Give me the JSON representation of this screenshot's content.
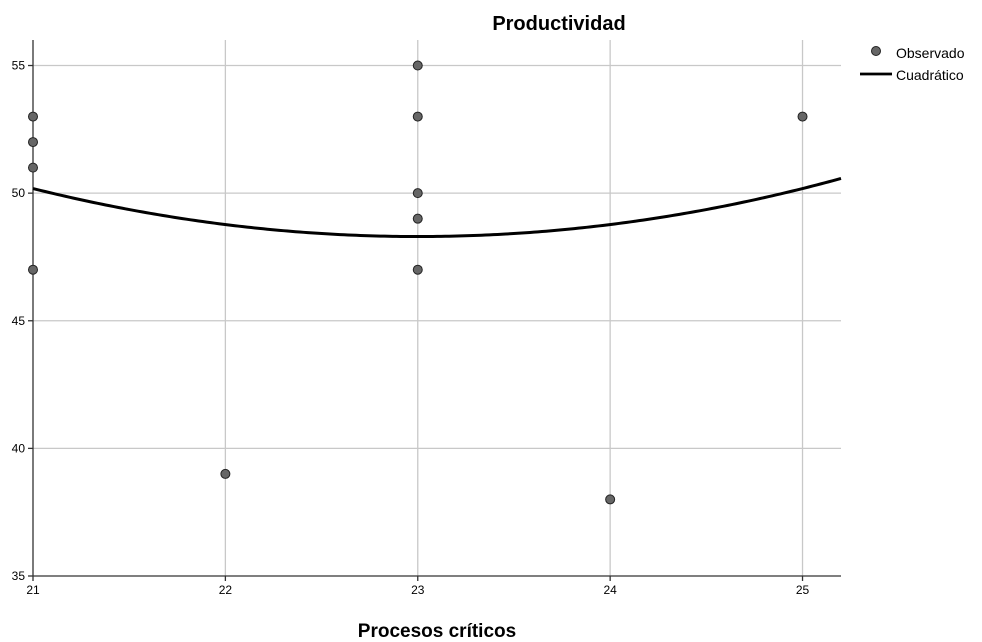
{
  "chart_data": {
    "type": "scatter",
    "title": "Productividad",
    "xlabel": "Procesos críticos",
    "ylabel": "",
    "xlim": [
      21,
      25.2
    ],
    "ylim": [
      35,
      56
    ],
    "x_ticks": [
      21,
      22,
      23,
      24,
      25
    ],
    "x_tick_labels": [
      "21",
      "22",
      "23",
      "24",
      "25"
    ],
    "y_ticks": [
      35,
      40,
      45,
      50,
      55
    ],
    "y_tick_labels": [
      "35",
      "40",
      "45",
      "50",
      "55"
    ],
    "grid": true,
    "legend_position": "top-right",
    "series": [
      {
        "name": "Observado",
        "kind": "points",
        "color": "#666666",
        "points": [
          {
            "x": 21,
            "y": 53
          },
          {
            "x": 21,
            "y": 52
          },
          {
            "x": 21,
            "y": 51
          },
          {
            "x": 21,
            "y": 47
          },
          {
            "x": 22,
            "y": 39
          },
          {
            "x": 23,
            "y": 55
          },
          {
            "x": 23,
            "y": 53
          },
          {
            "x": 23,
            "y": 50
          },
          {
            "x": 23,
            "y": 49
          },
          {
            "x": 23,
            "y": 47
          },
          {
            "x": 24,
            "y": 38
          },
          {
            "x": 25,
            "y": 53
          }
        ]
      },
      {
        "name": "Cuadrático",
        "kind": "curve",
        "color": "#000000",
        "equation": "y = 48.3 + 0.47 * (x - 23)^2"
      }
    ]
  }
}
